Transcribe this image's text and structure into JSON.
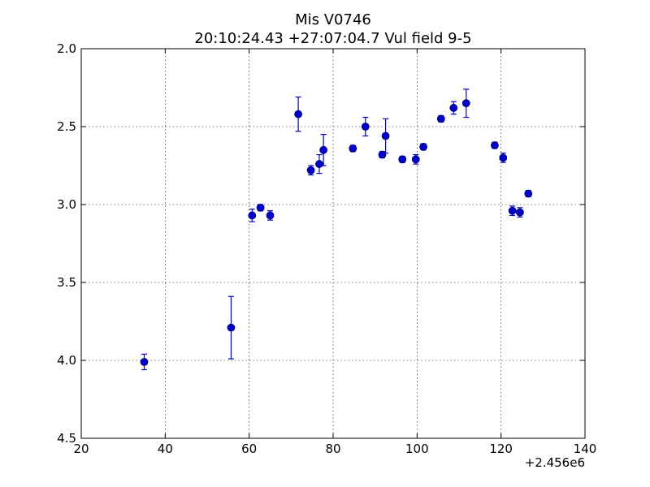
{
  "chart_data": {
    "type": "scatter",
    "title": "Mis V0746",
    "subtitle": "20:10:24.43 +27:07:04.7 Vul field 9-5",
    "x_offset_label": "+2.456e6",
    "xlim": [
      20,
      140
    ],
    "ylim": [
      2.0,
      4.5
    ],
    "y_inverted": true,
    "grid": true,
    "x_ticks": [
      20,
      40,
      60,
      80,
      100,
      120,
      140
    ],
    "x_tick_labels": [
      "20",
      "40",
      "60",
      "80",
      "100",
      "120",
      "140"
    ],
    "y_ticks": [
      2.0,
      2.5,
      3.0,
      3.5,
      4.0,
      4.5
    ],
    "y_tick_labels": [
      "2.0",
      "2.5",
      "3.0",
      "3.5",
      "4.0",
      "4.5"
    ],
    "marker_color": "#0000cc",
    "points": [
      {
        "x": 35.0,
        "y": 4.01,
        "err": 0.05
      },
      {
        "x": 55.7,
        "y": 3.79,
        "err": 0.2
      },
      {
        "x": 60.7,
        "y": 3.07,
        "err": 0.04
      },
      {
        "x": 62.7,
        "y": 3.02,
        "err": 0.02
      },
      {
        "x": 65.0,
        "y": 3.07,
        "err": 0.03
      },
      {
        "x": 71.7,
        "y": 2.42,
        "err": 0.11
      },
      {
        "x": 74.7,
        "y": 2.78,
        "err": 0.03
      },
      {
        "x": 76.7,
        "y": 2.74,
        "err": 0.06
      },
      {
        "x": 77.7,
        "y": 2.65,
        "err": 0.1
      },
      {
        "x": 84.7,
        "y": 2.64,
        "err": 0.02
      },
      {
        "x": 87.7,
        "y": 2.5,
        "err": 0.06
      },
      {
        "x": 91.7,
        "y": 2.68,
        "err": 0.02
      },
      {
        "x": 92.5,
        "y": 2.56,
        "err": 0.11
      },
      {
        "x": 96.5,
        "y": 2.71,
        "err": 0.02
      },
      {
        "x": 99.7,
        "y": 2.71,
        "err": 0.03
      },
      {
        "x": 101.5,
        "y": 2.63,
        "err": 0.02
      },
      {
        "x": 105.7,
        "y": 2.45,
        "err": 0.02
      },
      {
        "x": 108.7,
        "y": 2.38,
        "err": 0.04
      },
      {
        "x": 111.7,
        "y": 2.35,
        "err": 0.09
      },
      {
        "x": 118.5,
        "y": 2.62,
        "err": 0.02
      },
      {
        "x": 120.5,
        "y": 2.7,
        "err": 0.03
      },
      {
        "x": 122.7,
        "y": 3.04,
        "err": 0.03
      },
      {
        "x": 124.5,
        "y": 3.05,
        "err": 0.03
      },
      {
        "x": 126.5,
        "y": 2.93,
        "err": 0.02
      }
    ]
  }
}
